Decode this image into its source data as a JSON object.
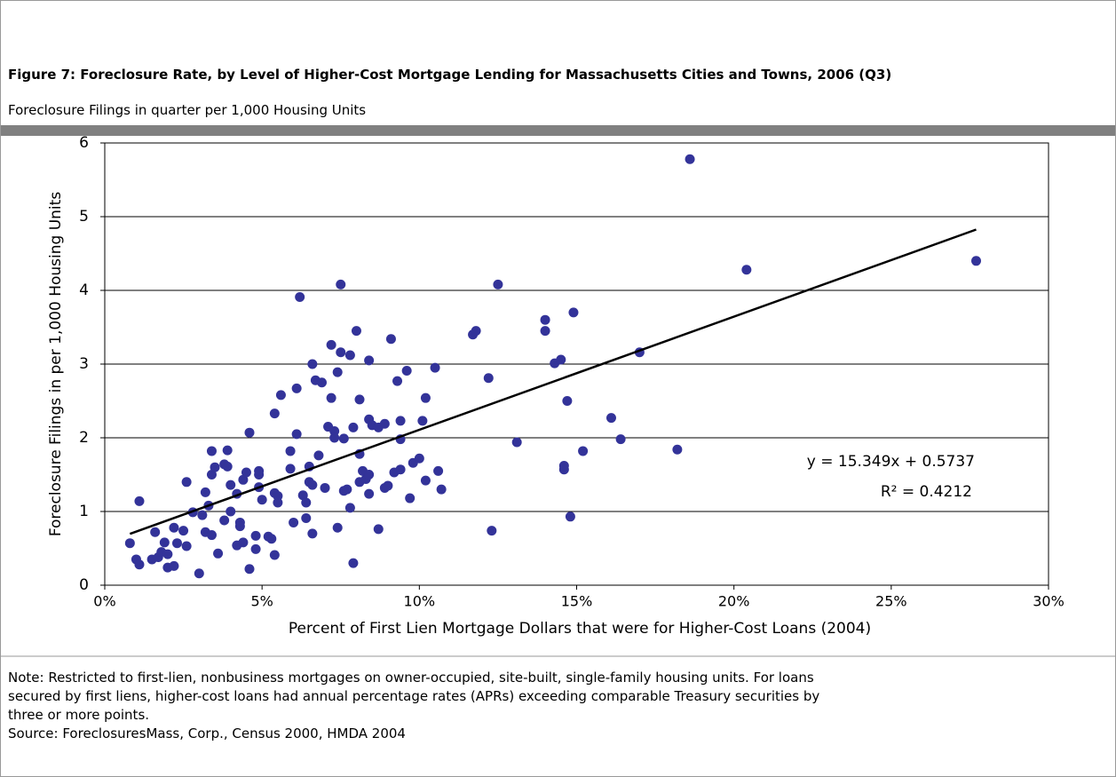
{
  "chart_data": {
    "type": "scatter",
    "title": "Figure 7: Foreclosure Rate, by Level of Higher-Cost Mortgage Lending for Massachusetts Cities and Towns, 2006 (Q3)",
    "subtitle": "Foreclosure Filings in quarter per 1,000 Housing Units",
    "xlabel": "Percent of First Lien Mortgage Dollars that were for Higher-Cost Loans (2004)",
    "ylabel": "Foreclosure Filings in per 1,000 Housing Units",
    "color": "#333399",
    "grid": true,
    "xlim": [
      0,
      30
    ],
    "ylim": [
      0,
      6
    ],
    "xticks": [
      {
        "value": 0,
        "label": "0%"
      },
      {
        "value": 5,
        "label": "5%"
      },
      {
        "value": 10,
        "label": "10%"
      },
      {
        "value": 15,
        "label": "15%"
      },
      {
        "value": 20,
        "label": "20%"
      },
      {
        "value": 25,
        "label": "25%"
      },
      {
        "value": 30,
        "label": "30%"
      }
    ],
    "yticks": [
      0,
      1,
      2,
      3,
      4,
      5,
      6
    ],
    "x": [
      0.8,
      1.0,
      1.1,
      1.1,
      1.5,
      1.6,
      1.7,
      1.8,
      1.9,
      2.0,
      2.0,
      2.2,
      2.2,
      2.3,
      2.5,
      2.6,
      2.6,
      2.8,
      3.0,
      3.1,
      3.2,
      3.2,
      3.3,
      3.4,
      3.4,
      3.4,
      3.5,
      3.6,
      3.8,
      3.8,
      3.9,
      3.9,
      4.0,
      4.0,
      4.2,
      4.2,
      4.3,
      4.3,
      4.4,
      4.4,
      4.5,
      4.6,
      4.6,
      4.8,
      4.8,
      4.9,
      4.9,
      4.9,
      5.0,
      5.2,
      5.3,
      5.4,
      5.4,
      5.4,
      5.5,
      5.5,
      5.6,
      5.9,
      5.9,
      6.0,
      6.1,
      6.1,
      6.2,
      6.3,
      6.4,
      6.4,
      6.5,
      6.5,
      6.6,
      6.6,
      6.6,
      6.7,
      6.8,
      6.9,
      7.0,
      7.1,
      7.2,
      7.2,
      7.3,
      7.3,
      7.4,
      7.4,
      7.5,
      7.5,
      7.6,
      7.6,
      7.7,
      7.8,
      7.8,
      7.9,
      7.9,
      8.0,
      8.1,
      8.1,
      8.1,
      8.2,
      8.3,
      8.4,
      8.4,
      8.4,
      8.4,
      8.5,
      8.7,
      8.7,
      8.9,
      8.9,
      9.0,
      9.1,
      9.2,
      9.3,
      9.4,
      9.4,
      9.4,
      9.6,
      9.7,
      9.8,
      10.0,
      10.1,
      10.2,
      10.2,
      10.5,
      10.6,
      10.7,
      11.7,
      11.8,
      12.2,
      12.3,
      12.5,
      13.1,
      14.0,
      14.0,
      14.3,
      14.5,
      14.6,
      14.6,
      14.7,
      14.8,
      14.9,
      15.2,
      16.1,
      16.4,
      17.0,
      18.2,
      18.6,
      20.4,
      27.7
    ],
    "y": [
      0.57,
      0.35,
      0.28,
      1.14,
      0.35,
      0.72,
      0.38,
      0.45,
      0.58,
      0.42,
      0.24,
      0.26,
      0.78,
      0.57,
      0.74,
      0.53,
      1.4,
      0.99,
      0.16,
      0.95,
      1.26,
      0.72,
      1.08,
      0.68,
      1.82,
      1.5,
      1.6,
      0.43,
      0.88,
      1.64,
      1.83,
      1.61,
      1.36,
      1.0,
      0.54,
      1.24,
      0.85,
      0.8,
      0.58,
      1.43,
      1.53,
      2.07,
      0.22,
      0.67,
      0.49,
      1.33,
      1.5,
      1.55,
      1.16,
      0.66,
      0.63,
      2.33,
      1.25,
      0.41,
      1.21,
      1.12,
      2.58,
      1.82,
      1.58,
      0.85,
      2.67,
      2.05,
      3.91,
      1.22,
      0.91,
      1.12,
      1.61,
      1.4,
      0.7,
      3.0,
      1.36,
      2.78,
      1.76,
      2.75,
      1.32,
      2.15,
      2.54,
      3.26,
      2.09,
      2.0,
      2.89,
      0.78,
      3.16,
      4.08,
      1.28,
      1.99,
      1.3,
      3.12,
      1.05,
      0.3,
      2.14,
      3.45,
      2.52,
      1.78,
      1.4,
      1.55,
      1.44,
      3.05,
      1.24,
      2.25,
      1.5,
      2.17,
      0.76,
      2.14,
      1.32,
      2.19,
      1.35,
      3.34,
      1.53,
      2.77,
      2.23,
      1.57,
      1.98,
      2.91,
      1.18,
      1.66,
      1.72,
      2.23,
      1.42,
      2.54,
      2.95,
      1.55,
      1.3,
      3.4,
      3.45,
      2.81,
      0.74,
      4.08,
      1.94,
      3.6,
      3.45,
      3.01,
      3.06,
      1.57,
      1.62,
      2.5,
      0.93,
      3.7,
      1.82,
      2.27,
      1.98,
      3.16,
      1.84,
      5.78,
      4.28,
      4.4
    ],
    "trendline": {
      "slope": 15.349,
      "intercept": 0.5737,
      "label": "y = 15.349x + 0.5737",
      "r2_label": "R² = 0.4212"
    },
    "notes": [
      "Note: Restricted to first-lien, nonbusiness mortgages on owner-occupied, site-built, single-family housing units.  For loans",
      "secured by first liens, higher-cost loans had annual percentage rates (APRs) exceeding comparable Treasury securities by",
      "three or more points.",
      "Source: ForeclosuresMass, Corp., Census 2000, HMDA 2004"
    ]
  }
}
